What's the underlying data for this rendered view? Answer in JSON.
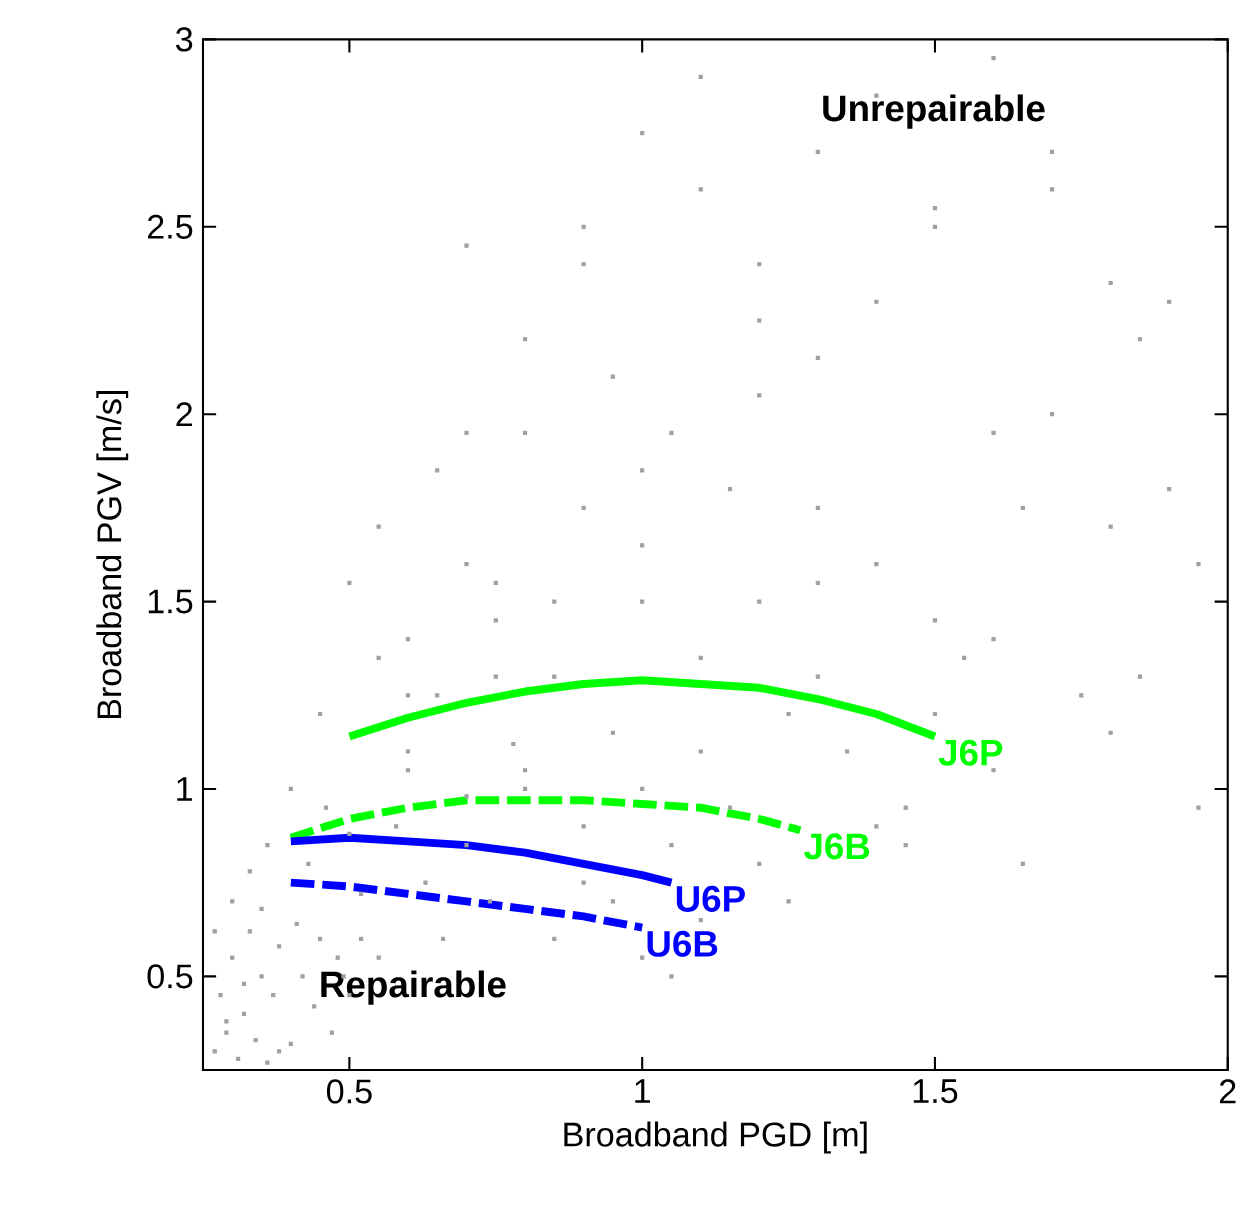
{
  "chart_data": {
    "type": "scatter",
    "xlabel": "Broadband PGD [m]",
    "ylabel": "Broadband PGV [m/s]",
    "xlim": [
      0.25,
      2
    ],
    "ylim": [
      0.25,
      3
    ],
    "xticks": [
      0.5,
      1,
      1.5,
      2
    ],
    "yticks": [
      0.5,
      1,
      1.5,
      2,
      2.5,
      3
    ],
    "grid": false,
    "legend": false,
    "annotations": [
      "Unrepairable",
      "Repairable"
    ],
    "series": [
      {
        "color": "#a0a0a0",
        "marker": "square",
        "x": [
          0.27,
          0.28,
          0.29,
          0.3,
          0.31,
          0.32,
          0.33,
          0.34,
          0.35,
          0.36,
          0.37,
          0.38,
          0.3,
          0.33,
          0.36,
          0.4,
          0.42,
          0.44,
          0.45,
          0.47,
          0.48,
          0.5,
          0.52,
          0.27,
          0.29,
          0.32,
          0.35,
          0.38,
          0.41,
          0.43,
          0.46,
          0.49,
          0.52,
          0.55,
          0.58,
          0.6,
          0.63,
          0.66,
          0.7,
          0.74,
          0.78,
          0.4,
          0.45,
          0.5,
          0.55,
          0.6,
          0.65,
          0.7,
          0.75,
          0.8,
          0.85,
          0.9,
          0.95,
          1.0,
          0.5,
          0.55,
          0.6,
          0.65,
          0.7,
          0.75,
          0.8,
          0.85,
          0.9,
          0.95,
          1.0,
          1.05,
          1.1,
          1.15,
          1.2,
          1.3,
          0.6,
          0.7,
          0.8,
          0.9,
          1.0,
          1.1,
          1.2,
          1.3,
          1.4,
          1.5,
          1.6,
          0.7,
          0.8,
          0.9,
          1.0,
          1.1,
          1.2,
          1.3,
          1.4,
          1.5,
          1.6,
          1.7,
          1.8,
          0.75,
          0.85,
          0.95,
          1.05,
          1.15,
          1.25,
          1.35,
          1.45,
          1.55,
          1.65,
          1.75,
          1.85,
          1.95,
          0.9,
          1.0,
          1.1,
          1.2,
          1.3,
          1.4,
          1.5,
          1.6,
          1.7,
          1.8,
          1.9,
          1.0,
          1.1,
          1.2,
          1.4,
          1.6,
          1.8,
          1.95,
          1.3,
          1.5,
          1.7,
          1.9,
          1.05,
          1.25,
          1.45,
          1.65,
          1.85
        ],
        "values": [
          0.3,
          0.45,
          0.35,
          0.55,
          0.28,
          0.4,
          0.62,
          0.33,
          0.5,
          0.27,
          0.45,
          0.58,
          0.7,
          0.78,
          0.85,
          0.32,
          0.5,
          0.42,
          0.6,
          0.35,
          0.55,
          0.45,
          0.6,
          0.62,
          0.38,
          0.48,
          0.68,
          0.3,
          0.64,
          0.8,
          0.95,
          0.5,
          0.72,
          0.55,
          0.9,
          1.05,
          0.75,
          0.6,
          0.98,
          0.7,
          1.12,
          1.0,
          1.2,
          0.88,
          1.35,
          1.1,
          1.25,
          0.85,
          1.45,
          1.0,
          1.3,
          0.9,
          1.15,
          1.5,
          1.55,
          1.7,
          1.4,
          1.85,
          1.6,
          1.3,
          1.95,
          1.5,
          1.75,
          2.1,
          1.65,
          1.95,
          1.35,
          1.8,
          2.25,
          1.55,
          1.25,
          1.95,
          2.2,
          2.4,
          1.85,
          2.6,
          2.05,
          1.75,
          2.3,
          1.45,
          1.95,
          2.45,
          1.05,
          0.75,
          1.0,
          1.1,
          1.5,
          1.3,
          1.6,
          1.2,
          1.4,
          2.0,
          1.7,
          1.55,
          0.6,
          0.7,
          0.85,
          0.95,
          1.2,
          1.1,
          0.95,
          1.35,
          1.75,
          1.25,
          2.2,
          1.6,
          2.5,
          2.75,
          2.9,
          2.4,
          2.7,
          2.85,
          2.55,
          2.95,
          2.7,
          2.35,
          1.8,
          0.55,
          0.65,
          0.8,
          0.9,
          1.05,
          1.15,
          0.95,
          2.15,
          2.5,
          2.6,
          2.3,
          0.5,
          0.7,
          0.85,
          0.8,
          1.3
        ]
      },
      {
        "name": "J6P",
        "type": "line",
        "color": "#00ff00",
        "line_style": "solid",
        "marker": "none",
        "x": [
          0.5,
          0.6,
          0.7,
          0.8,
          0.9,
          1.0,
          1.1,
          1.2,
          1.3,
          1.4,
          1.5
        ],
        "values": [
          1.14,
          1.19,
          1.23,
          1.26,
          1.28,
          1.29,
          1.28,
          1.27,
          1.24,
          1.2,
          1.14
        ]
      },
      {
        "name": "J6B",
        "type": "line",
        "color": "#00ff00",
        "line_style": "dashed",
        "marker": "none",
        "x": [
          0.4,
          0.5,
          0.6,
          0.7,
          0.8,
          0.9,
          1.0,
          1.1,
          1.2,
          1.27
        ],
        "values": [
          0.87,
          0.92,
          0.95,
          0.97,
          0.97,
          0.97,
          0.96,
          0.95,
          0.92,
          0.89
        ]
      },
      {
        "name": "U6P",
        "type": "line",
        "color": "#0000ff",
        "line_style": "solid",
        "marker": "none",
        "x": [
          0.4,
          0.5,
          0.6,
          0.7,
          0.8,
          0.9,
          1.0,
          1.05
        ],
        "values": [
          0.86,
          0.87,
          0.86,
          0.85,
          0.83,
          0.8,
          0.77,
          0.75
        ]
      },
      {
        "name": "U6B",
        "type": "line",
        "color": "#0000ff",
        "line_style": "dashed",
        "marker": "none",
        "x": [
          0.4,
          0.5,
          0.6,
          0.7,
          0.8,
          0.9,
          1.0
        ],
        "values": [
          0.75,
          0.74,
          0.72,
          0.7,
          0.68,
          0.66,
          0.63
        ]
      }
    ]
  }
}
